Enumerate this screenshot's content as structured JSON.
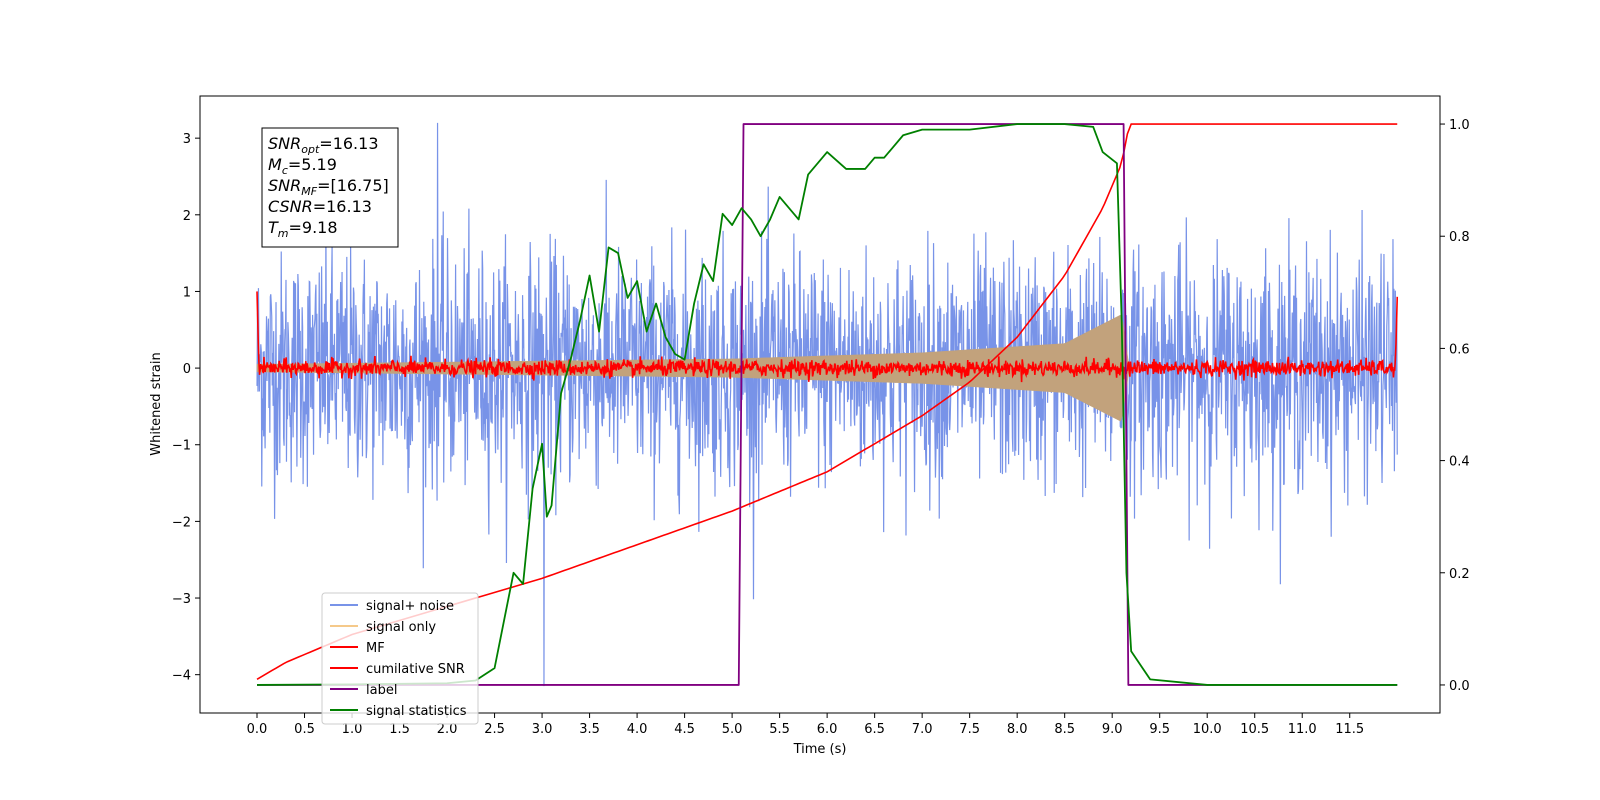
{
  "chart_data": {
    "type": "line",
    "title": "",
    "xlabel": "Time (s)",
    "ylabel": "Whitened strain",
    "xlim": [
      -0.6,
      12.45
    ],
    "ylim": [
      -4.5,
      3.55
    ],
    "y2lim": [
      -0.05,
      1.05
    ],
    "xticks": [
      "0.0",
      "0.5",
      "1.0",
      "1.5",
      "2.0",
      "2.5",
      "3.0",
      "3.5",
      "4.0",
      "4.5",
      "5.0",
      "5.5",
      "6.0",
      "6.5",
      "7.0",
      "7.5",
      "8.0",
      "8.5",
      "9.0",
      "9.5",
      "10.0",
      "10.5",
      "11.0",
      "11.5"
    ],
    "yticks": [
      "3",
      "2",
      "1",
      "0",
      "−1",
      "−2",
      "−3",
      "−4"
    ],
    "y2ticks": [
      "1.0",
      "0.8",
      "0.6",
      "0.4",
      "0.2",
      "0.0"
    ],
    "legend_position": "lower-left",
    "info_box": [
      {
        "base": "SNR",
        "sub": "opt",
        "rest": "=16.13"
      },
      {
        "base": "M",
        "sub": "c",
        "rest": "=5.19"
      },
      {
        "base": "SNR",
        "sub": "MF",
        "rest": "=[16.75]"
      },
      {
        "base": "CSNR",
        "sub": "",
        "rest": "=16.13"
      },
      {
        "base": "T",
        "sub": "m",
        "rest": "=9.18"
      }
    ],
    "series": [
      {
        "name": "signal+ noise",
        "color": "#7893e8",
        "axis": "left",
        "style": "noise",
        "x_range": [
          0,
          12
        ],
        "amplitude": [
          -2.2,
          2.2
        ],
        "extremes": [
          3.2,
          -4.15
        ]
      },
      {
        "name": "signal only",
        "color": "#f5c98a",
        "fill": "#c2a27c",
        "axis": "left",
        "style": "chirp",
        "x_range": [
          0,
          9.18
        ],
        "envelope": [
          [
            0,
            0.05
          ],
          [
            5,
            0.12
          ],
          [
            7,
            0.2
          ],
          [
            8.5,
            0.32
          ],
          [
            9.1,
            0.7
          ],
          [
            9.18,
            0
          ]
        ]
      },
      {
        "name": "MF",
        "color": "#ff0000",
        "axis": "left",
        "style": "mf",
        "x_range": [
          0,
          12
        ],
        "amplitude": 0.12,
        "edge_value": 1.0
      },
      {
        "name": "cumilative SNR",
        "color": "#ff0000",
        "axis": "right",
        "points": [
          [
            0,
            0.01
          ],
          [
            0.3,
            0.04
          ],
          [
            1,
            0.09
          ],
          [
            2,
            0.14
          ],
          [
            3,
            0.19
          ],
          [
            4,
            0.25
          ],
          [
            5,
            0.31
          ],
          [
            6,
            0.38
          ],
          [
            7,
            0.48
          ],
          [
            7.5,
            0.54
          ],
          [
            8,
            0.62
          ],
          [
            8.5,
            0.73
          ],
          [
            8.9,
            0.85
          ],
          [
            9.1,
            0.93
          ],
          [
            9.18,
            1.0
          ],
          [
            12,
            1.0
          ]
        ]
      },
      {
        "name": "label",
        "color": "#800080",
        "axis": "right",
        "points": [
          [
            0,
            0
          ],
          [
            5.07,
            0
          ],
          [
            5.12,
            1.0
          ],
          [
            9.12,
            1.0
          ],
          [
            9.17,
            0
          ],
          [
            12,
            0
          ]
        ]
      },
      {
        "name": "signal statistics",
        "color": "#008000",
        "axis": "right",
        "points": [
          [
            0,
            0
          ],
          [
            1,
            0.001
          ],
          [
            2,
            0.003
          ],
          [
            2.3,
            0.008
          ],
          [
            2.5,
            0.03
          ],
          [
            2.7,
            0.2
          ],
          [
            2.8,
            0.18
          ],
          [
            2.9,
            0.35
          ],
          [
            3.0,
            0.43
          ],
          [
            3.05,
            0.3
          ],
          [
            3.1,
            0.32
          ],
          [
            3.2,
            0.52
          ],
          [
            3.3,
            0.58
          ],
          [
            3.4,
            0.65
          ],
          [
            3.5,
            0.73
          ],
          [
            3.6,
            0.63
          ],
          [
            3.7,
            0.78
          ],
          [
            3.8,
            0.77
          ],
          [
            3.9,
            0.69
          ],
          [
            4.0,
            0.72
          ],
          [
            4.1,
            0.63
          ],
          [
            4.2,
            0.68
          ],
          [
            4.3,
            0.62
          ],
          [
            4.4,
            0.59
          ],
          [
            4.5,
            0.58
          ],
          [
            4.6,
            0.68
          ],
          [
            4.7,
            0.75
          ],
          [
            4.8,
            0.72
          ],
          [
            4.9,
            0.84
          ],
          [
            5.0,
            0.82
          ],
          [
            5.1,
            0.85
          ],
          [
            5.2,
            0.83
          ],
          [
            5.3,
            0.8
          ],
          [
            5.4,
            0.83
          ],
          [
            5.5,
            0.87
          ],
          [
            5.7,
            0.83
          ],
          [
            5.8,
            0.91
          ],
          [
            6.0,
            0.95
          ],
          [
            6.2,
            0.92
          ],
          [
            6.4,
            0.92
          ],
          [
            6.5,
            0.94
          ],
          [
            6.6,
            0.94
          ],
          [
            6.8,
            0.98
          ],
          [
            7.0,
            0.99
          ],
          [
            7.5,
            0.99
          ],
          [
            8.0,
            1.0
          ],
          [
            8.5,
            1.0
          ],
          [
            8.8,
            0.995
          ],
          [
            8.9,
            0.95
          ],
          [
            9.05,
            0.93
          ],
          [
            9.1,
            0.65
          ],
          [
            9.15,
            0.2
          ],
          [
            9.2,
            0.06
          ],
          [
            9.4,
            0.01
          ],
          [
            10,
            0
          ],
          [
            12,
            0
          ]
        ]
      }
    ]
  }
}
